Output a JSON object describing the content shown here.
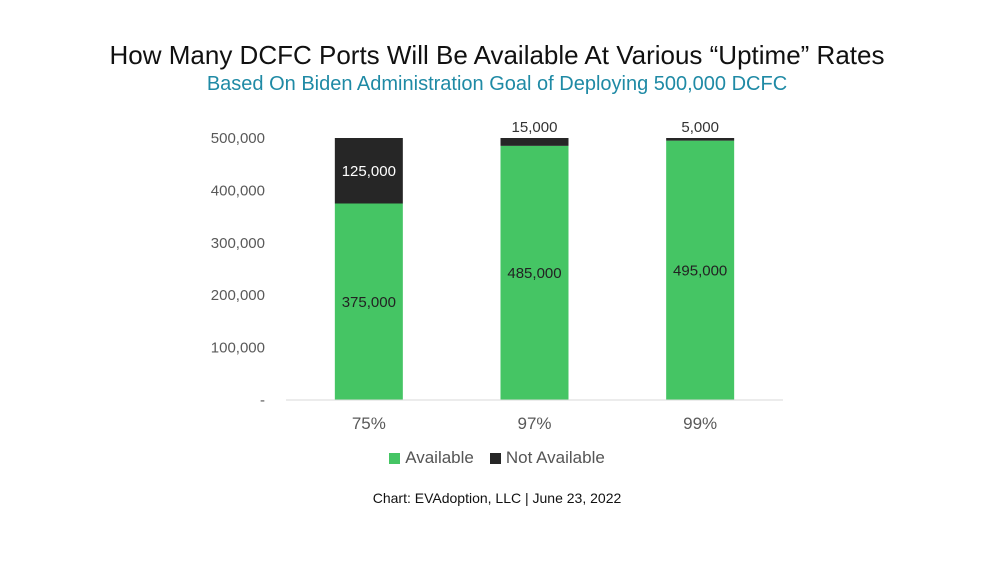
{
  "header": {
    "title": "How Many DCFC Ports Will Be Available At Various “Uptime” Rates",
    "subtitle": "Based On Biden Administration Goal of Deploying 500,000 DCFC"
  },
  "colors": {
    "available": "#45c564",
    "not_available": "#262626",
    "subtitle": "#1f8aa5",
    "axis_text": "#595959"
  },
  "chart_data": {
    "type": "bar",
    "stacked": true,
    "categories": [
      "75%",
      "97%",
      "99%"
    ],
    "series": [
      {
        "name": "Available",
        "values": [
          375000,
          485000,
          495000
        ],
        "labels": [
          "375,000",
          "485,000",
          "495,000"
        ]
      },
      {
        "name": "Not Available",
        "values": [
          125000,
          15000,
          5000
        ],
        "labels": [
          "125,000",
          "15,000",
          "5,000"
        ]
      }
    ],
    "ylim": [
      0,
      500000
    ],
    "yticks": [
      0,
      100000,
      200000,
      300000,
      400000,
      500000
    ],
    "ytick_labels": [
      "-",
      "100,000",
      "200,000",
      "300,000",
      "400,000",
      "500,000"
    ],
    "grid": false,
    "legend_position": "bottom"
  },
  "legend": {
    "available_label": "Available",
    "not_available_label": "Not Available"
  },
  "footer": {
    "caption": "Chart: EVAdoption, LLC | June 23, 2022"
  }
}
